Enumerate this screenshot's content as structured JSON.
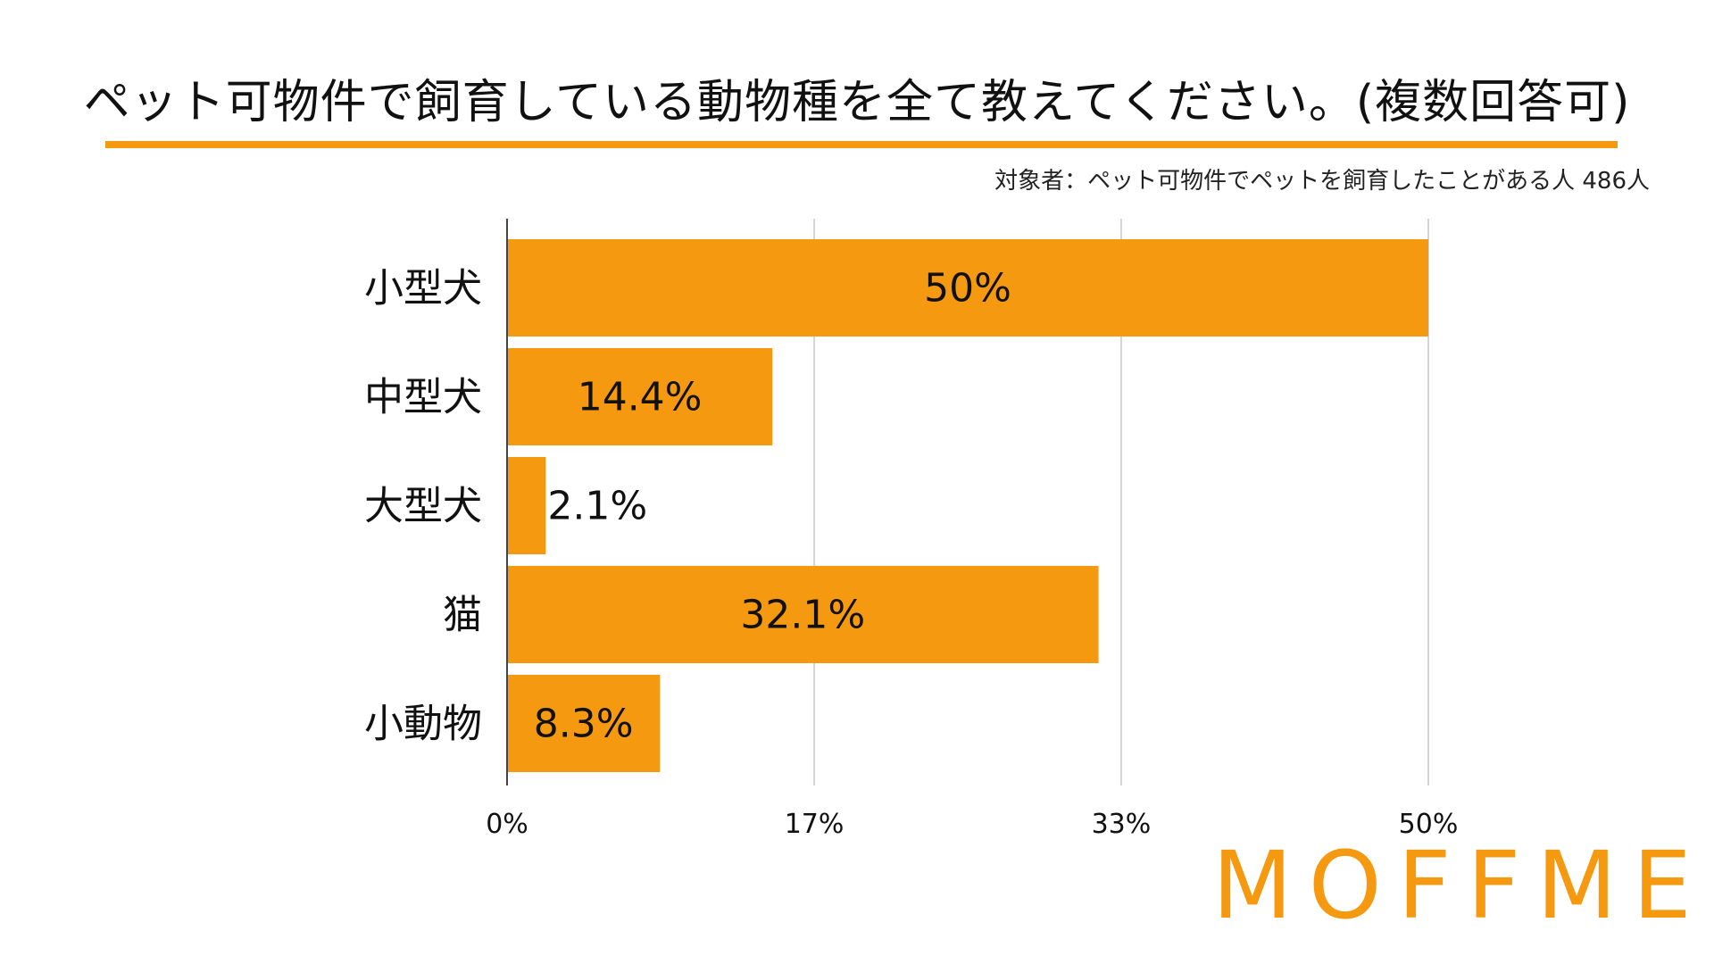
{
  "chart_data": {
    "type": "bar",
    "orientation": "horizontal",
    "title": "ペット可物件で飼育している動物種を全て教えてください。(複数回答可)",
    "subtitle": "対象者：ペット可物件でペットを飼育したことがある人 486人",
    "categories": [
      "小型犬",
      "中型犬",
      "大型犬",
      "猫",
      "小動物"
    ],
    "values": [
      50,
      14.4,
      2.1,
      32.1,
      8.3
    ],
    "value_labels": [
      "50%",
      "14.4%",
      "2.1%",
      "32.1%",
      "8.3%"
    ],
    "x_ticks": [
      "0%",
      "17%",
      "33%",
      "50%"
    ],
    "x_tick_values": [
      0,
      16.67,
      33.33,
      50
    ],
    "xlim": [
      0,
      50
    ],
    "xlabel": "",
    "ylabel": "",
    "grid": true,
    "bar_color": "#f59a10"
  },
  "brand": {
    "logo_text": "MOFFME",
    "color": "#f59a10"
  }
}
